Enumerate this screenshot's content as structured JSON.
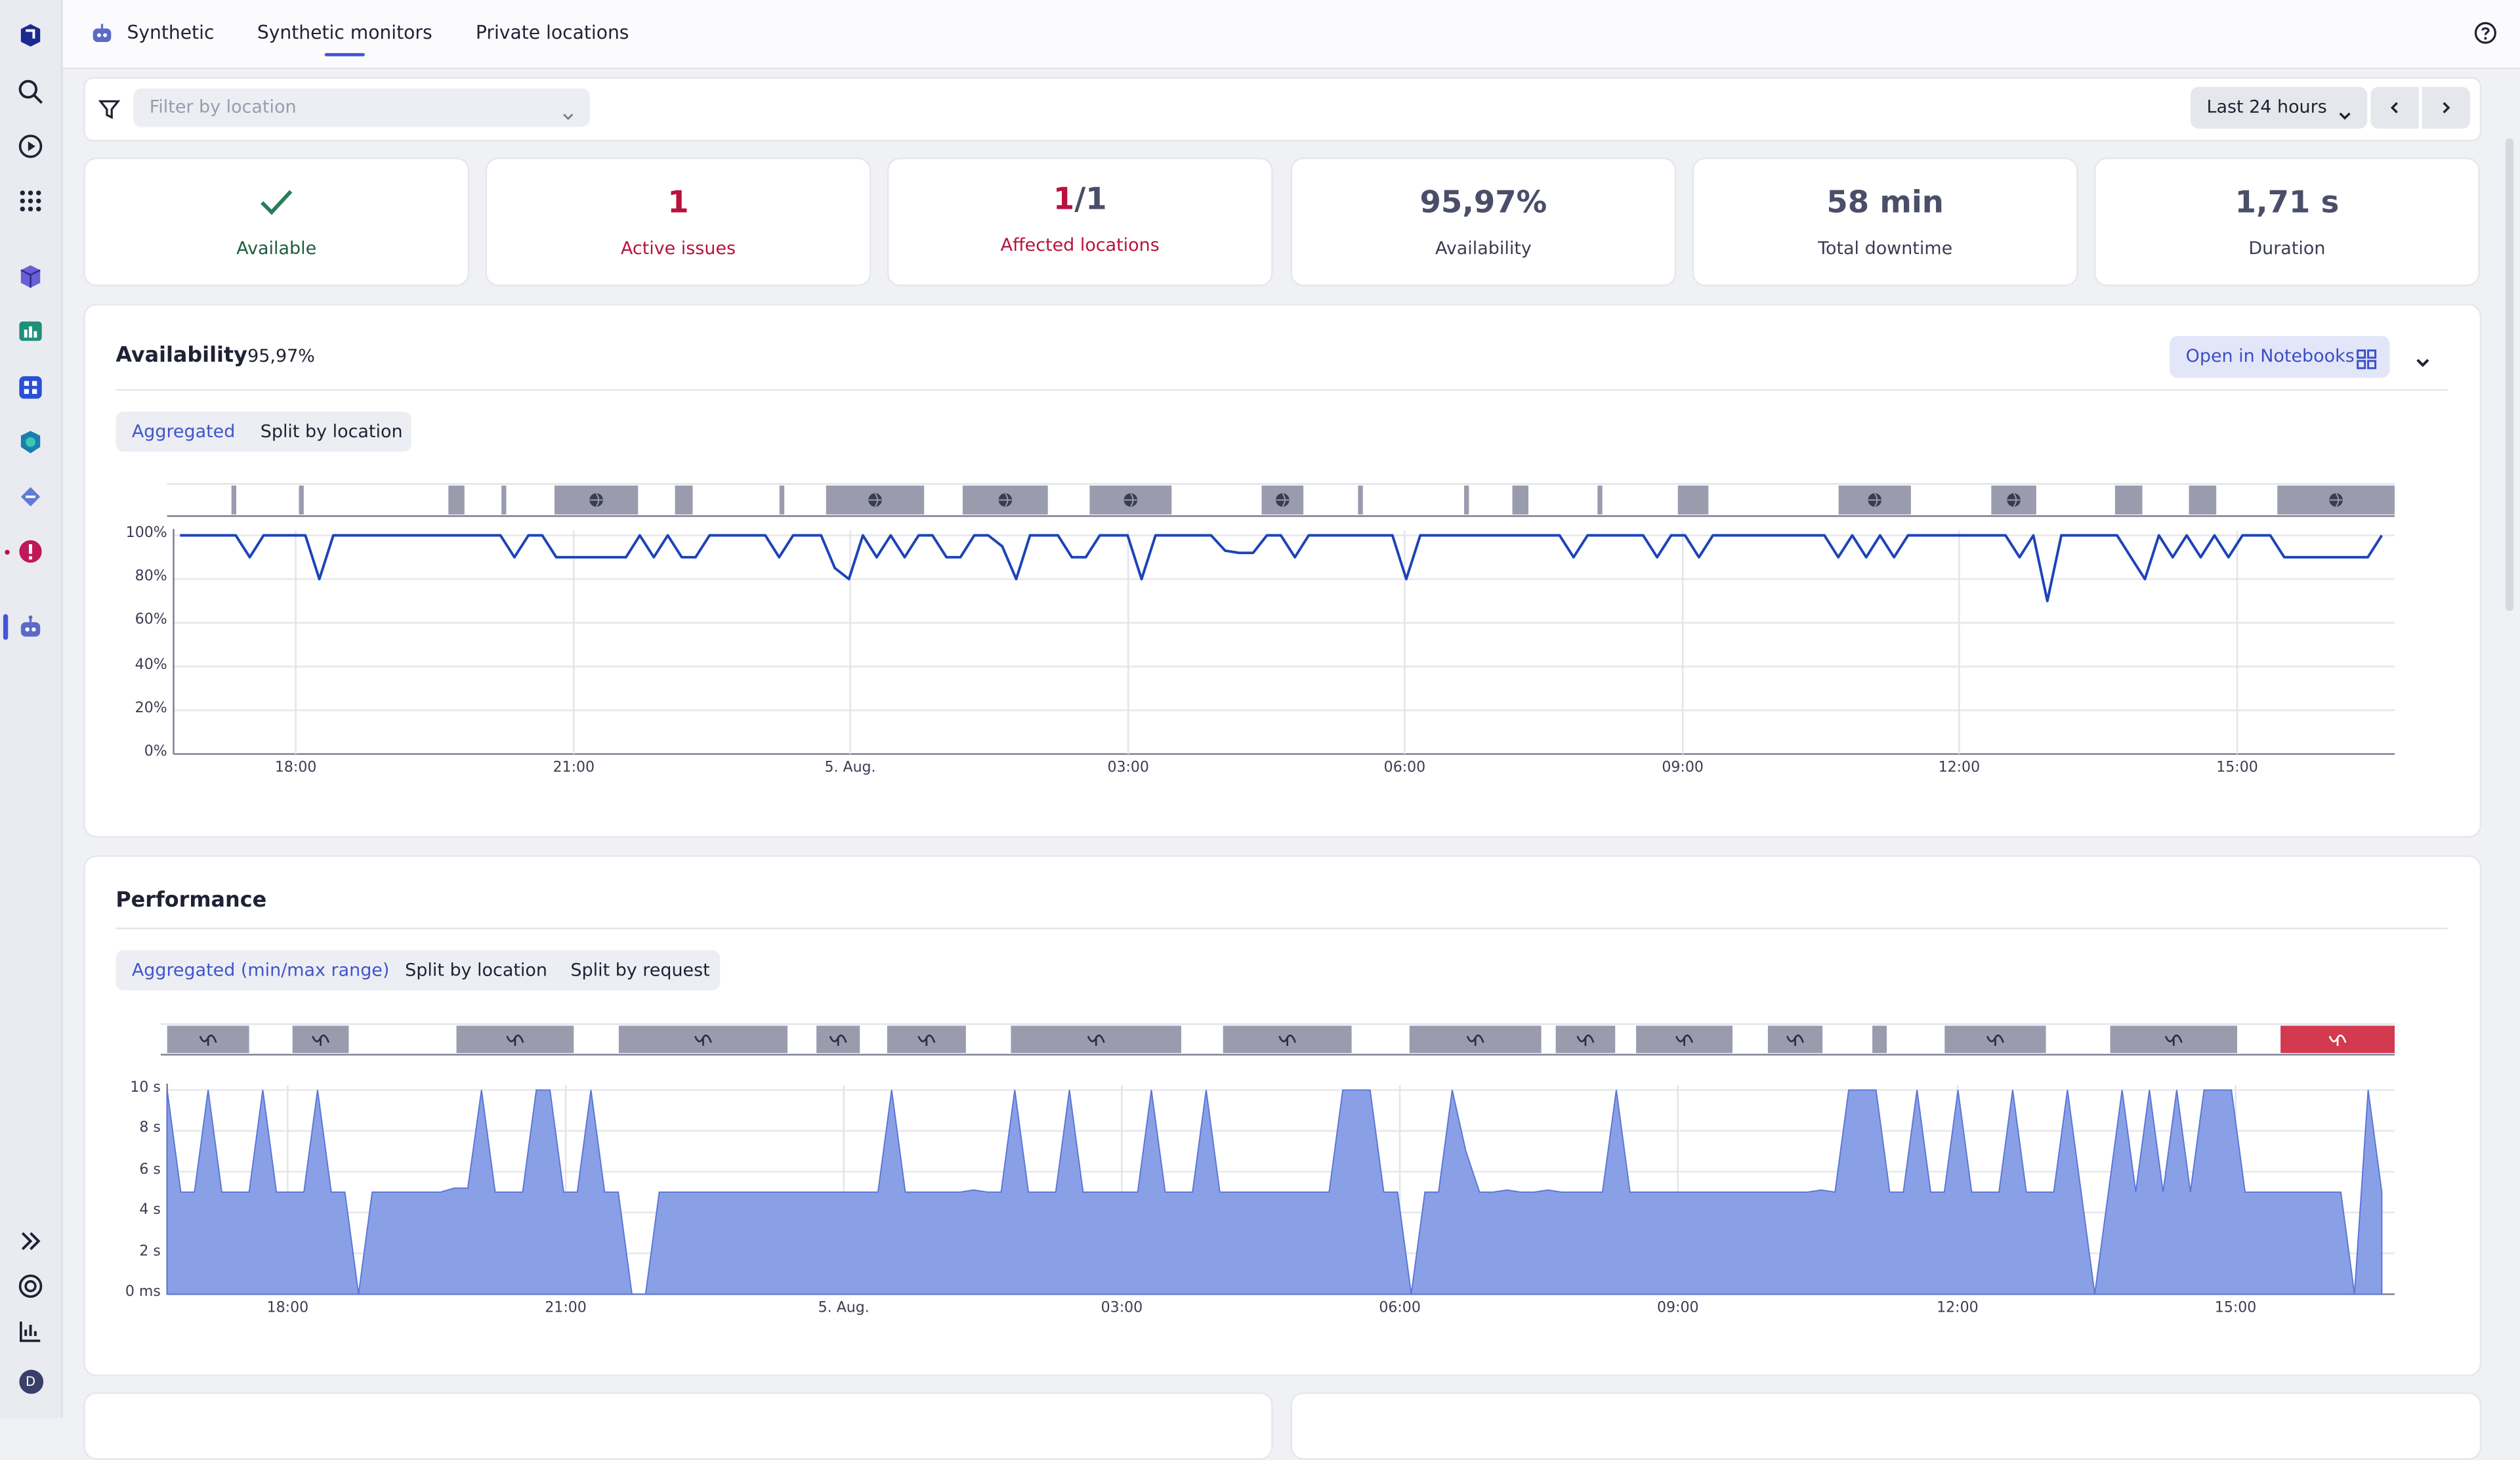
{
  "header": {
    "app_name": "Synthetic",
    "tabs": [
      {
        "label": "Synthetic monitors",
        "active": true
      },
      {
        "label": "Private locations",
        "active": false
      }
    ],
    "help_icon": "help-circle-icon"
  },
  "sidebar": {
    "icons": [
      "app-logo-icon",
      "search-icon",
      "play-circle-icon",
      "apps-grid-icon",
      "cube-icon",
      "chart-app-icon",
      "dashboard-app-icon",
      "kubernetes-app-icon",
      "transfer-app-icon",
      "problems-app-icon",
      "synthetic-app-icon"
    ],
    "bottom_icons": [
      "expand-icon",
      "support-icon",
      "chart-icon",
      "user-avatar-icon"
    ],
    "avatar_letter": "D"
  },
  "filter": {
    "placeholder": "Filter by location",
    "timeframe": "Last 24 hours"
  },
  "kpis": [
    {
      "value": "",
      "label": "Available",
      "icon": "check-icon"
    },
    {
      "value": "1",
      "label": "Active issues"
    },
    {
      "value_a": "1",
      "value_b": "/1",
      "label": "Affected locations"
    },
    {
      "value": "95,97%",
      "label": "Availability"
    },
    {
      "value": "58 min",
      "label": "Total downtime"
    },
    {
      "value": "1,71 s",
      "label": "Duration"
    }
  ],
  "availability": {
    "title": "Availability",
    "value": "95,97%",
    "open_button": "Open in Notebooks",
    "segments": [
      {
        "label": "Aggregated",
        "active": true
      },
      {
        "label": "Split by location",
        "active": false
      }
    ]
  },
  "performance": {
    "title": "Performance",
    "segments": [
      {
        "label": "Aggregated (min/max range)",
        "active": true
      },
      {
        "label": "Split by location",
        "active": false
      },
      {
        "label": "Split by request",
        "active": false
      }
    ]
  },
  "colors": {
    "accent": "#4256d6",
    "line": "#1c44b8",
    "area": "#8aa0e6",
    "issue": "#b8123e",
    "event": "#9a9cae"
  },
  "chart_data": [
    {
      "type": "line",
      "title": "",
      "xlabel": "",
      "ylabel": "",
      "x_ticks": [
        "18:00",
        "21:00",
        "5. Aug.",
        "03:00",
        "06:00",
        "09:00",
        "12:00",
        "15:00"
      ],
      "y_ticks": [
        "100%",
        "80%",
        "60%",
        "40%",
        "20%",
        "0%"
      ],
      "ylim": [
        0,
        100
      ],
      "grid": true,
      "series": [
        {
          "values": [
            100,
            100,
            100,
            100,
            100,
            90,
            100,
            100,
            100,
            100,
            80,
            100,
            100,
            100,
            100,
            100,
            100,
            100,
            100,
            100,
            100,
            100,
            100,
            100,
            90,
            100,
            100,
            90,
            90,
            90,
            90,
            90,
            90,
            100,
            90,
            100,
            90,
            90,
            100,
            100,
            100,
            100,
            100,
            90,
            100,
            100,
            100,
            85,
            80,
            100,
            90,
            100,
            90,
            100,
            100,
            90,
            90,
            100,
            100,
            95,
            80,
            100,
            100,
            100,
            90,
            90,
            100,
            100,
            100,
            80,
            100,
            100,
            100,
            100,
            100,
            93,
            92,
            92,
            100,
            100,
            90,
            100,
            100,
            100,
            100,
            100,
            100,
            100,
            80,
            100,
            100,
            100,
            100,
            100,
            100,
            100,
            100,
            100,
            100,
            100,
            90,
            100,
            100,
            100,
            100,
            100,
            90,
            100,
            100,
            90,
            100,
            100,
            100,
            100,
            100,
            100,
            100,
            100,
            100,
            90,
            100,
            90,
            100,
            90,
            100,
            100,
            100,
            100,
            100,
            100,
            100,
            100,
            90,
            100,
            70,
            100,
            100,
            100,
            100,
            100,
            90,
            80,
            100,
            90,
            100,
            90,
            100,
            90,
            100,
            100,
            100,
            90,
            90,
            90,
            90,
            90,
            90,
            90,
            100
          ]
        }
      ],
      "event_markers": "location-outage-icon"
    },
    {
      "type": "area",
      "title": "",
      "xlabel": "",
      "ylabel": "",
      "x_ticks": [
        "18:00",
        "21:00",
        "5. Aug.",
        "03:00",
        "06:00",
        "09:00",
        "12:00",
        "15:00"
      ],
      "y_ticks": [
        "10 s",
        "8 s",
        "6 s",
        "4 s",
        "2 s",
        "0 ms"
      ],
      "ylim": [
        0,
        10
      ],
      "grid": true,
      "series": [
        {
          "values": [
            10,
            5,
            5,
            10,
            5,
            5,
            5,
            10,
            5,
            5,
            5,
            10,
            5,
            5,
            0,
            5,
            5,
            5,
            5,
            5,
            5,
            5.2,
            5.2,
            10,
            5,
            5,
            5,
            10,
            10,
            5,
            5,
            10,
            5,
            5,
            0,
            0,
            5,
            5,
            5,
            5,
            5,
            5,
            5,
            5,
            5,
            5,
            5,
            5,
            5,
            5,
            5,
            5,
            5,
            10,
            5,
            5,
            5,
            5,
            5,
            5.1,
            5,
            5,
            10,
            5,
            5,
            5,
            10,
            5,
            5,
            5,
            5,
            5,
            10,
            5,
            5,
            5,
            10,
            5,
            5,
            5,
            5,
            5,
            5,
            5,
            5,
            5,
            10,
            10,
            10,
            5,
            5,
            0,
            5,
            5,
            10,
            7,
            5,
            5,
            5.1,
            5,
            5,
            5.1,
            5,
            5,
            5,
            5,
            10,
            5,
            5,
            5,
            5,
            5,
            5,
            5,
            5,
            5,
            5,
            5,
            5,
            5,
            5,
            5.1,
            5,
            10,
            10,
            10,
            5,
            5,
            10,
            5,
            5,
            10,
            5,
            5,
            5,
            10,
            5,
            5,
            5,
            10,
            5,
            0,
            5,
            10,
            5,
            10,
            5,
            10,
            5,
            10,
            10,
            10,
            5,
            5,
            5,
            5,
            5,
            5,
            5,
            5,
            0,
            10,
            5
          ],
          "range_area": true
        }
      ],
      "event_markers": "request-outage-icon",
      "issue_marker_color": "#d3394f"
    }
  ]
}
